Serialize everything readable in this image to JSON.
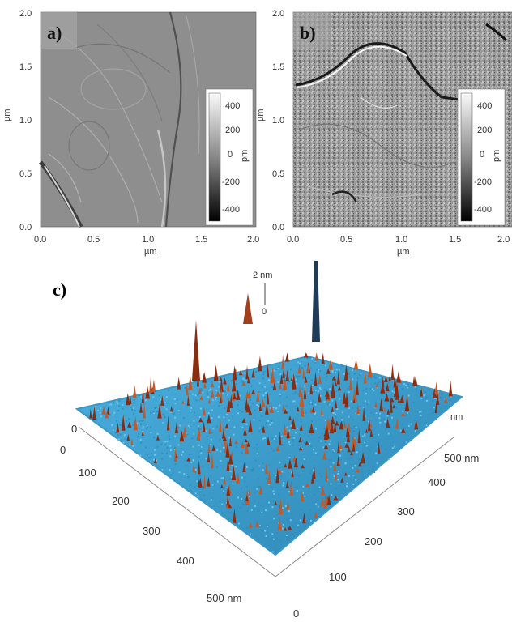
{
  "panel_a": {
    "label": "a)",
    "y_ticks": [
      "0.0",
      "0.5",
      "1.0",
      "1.5",
      "2.0"
    ],
    "x_ticks": [
      "0.0",
      "0.5",
      "1.0",
      "1.5",
      "2.0"
    ],
    "x_unit": "µm",
    "y_unit": "µm",
    "colorbar": {
      "ticks": [
        "400",
        "200",
        "0",
        "-200",
        "-400"
      ],
      "unit": "pm"
    }
  },
  "panel_b": {
    "label": "b)",
    "y_ticks": [
      "0.0",
      "0.5",
      "1.0",
      "1.5",
      "2.0"
    ],
    "x_ticks": [
      "0.0",
      "0.5",
      "1.0",
      "1.5",
      "2.0"
    ],
    "x_unit": "µm",
    "y_unit": "µm",
    "colorbar": {
      "ticks": [
        "400",
        "200",
        "0",
        "-200",
        "-400"
      ],
      "unit": "pm"
    }
  },
  "panel_c": {
    "label": "c)",
    "z_scale": {
      "top": "2 nm",
      "bottom": "0"
    },
    "left_axis": [
      "0",
      "100",
      "200",
      "300",
      "400",
      "500 nm"
    ],
    "right_axis": [
      "0",
      "100",
      "200",
      "300",
      "400",
      "500 nm"
    ],
    "right_corner": "0",
    "edge_label": "nm",
    "surface_colors": {
      "base": "#2f8fc0",
      "light": "#6cc6ee",
      "peak": "#8a2c12",
      "peak_light": "#c05a2a"
    }
  }
}
